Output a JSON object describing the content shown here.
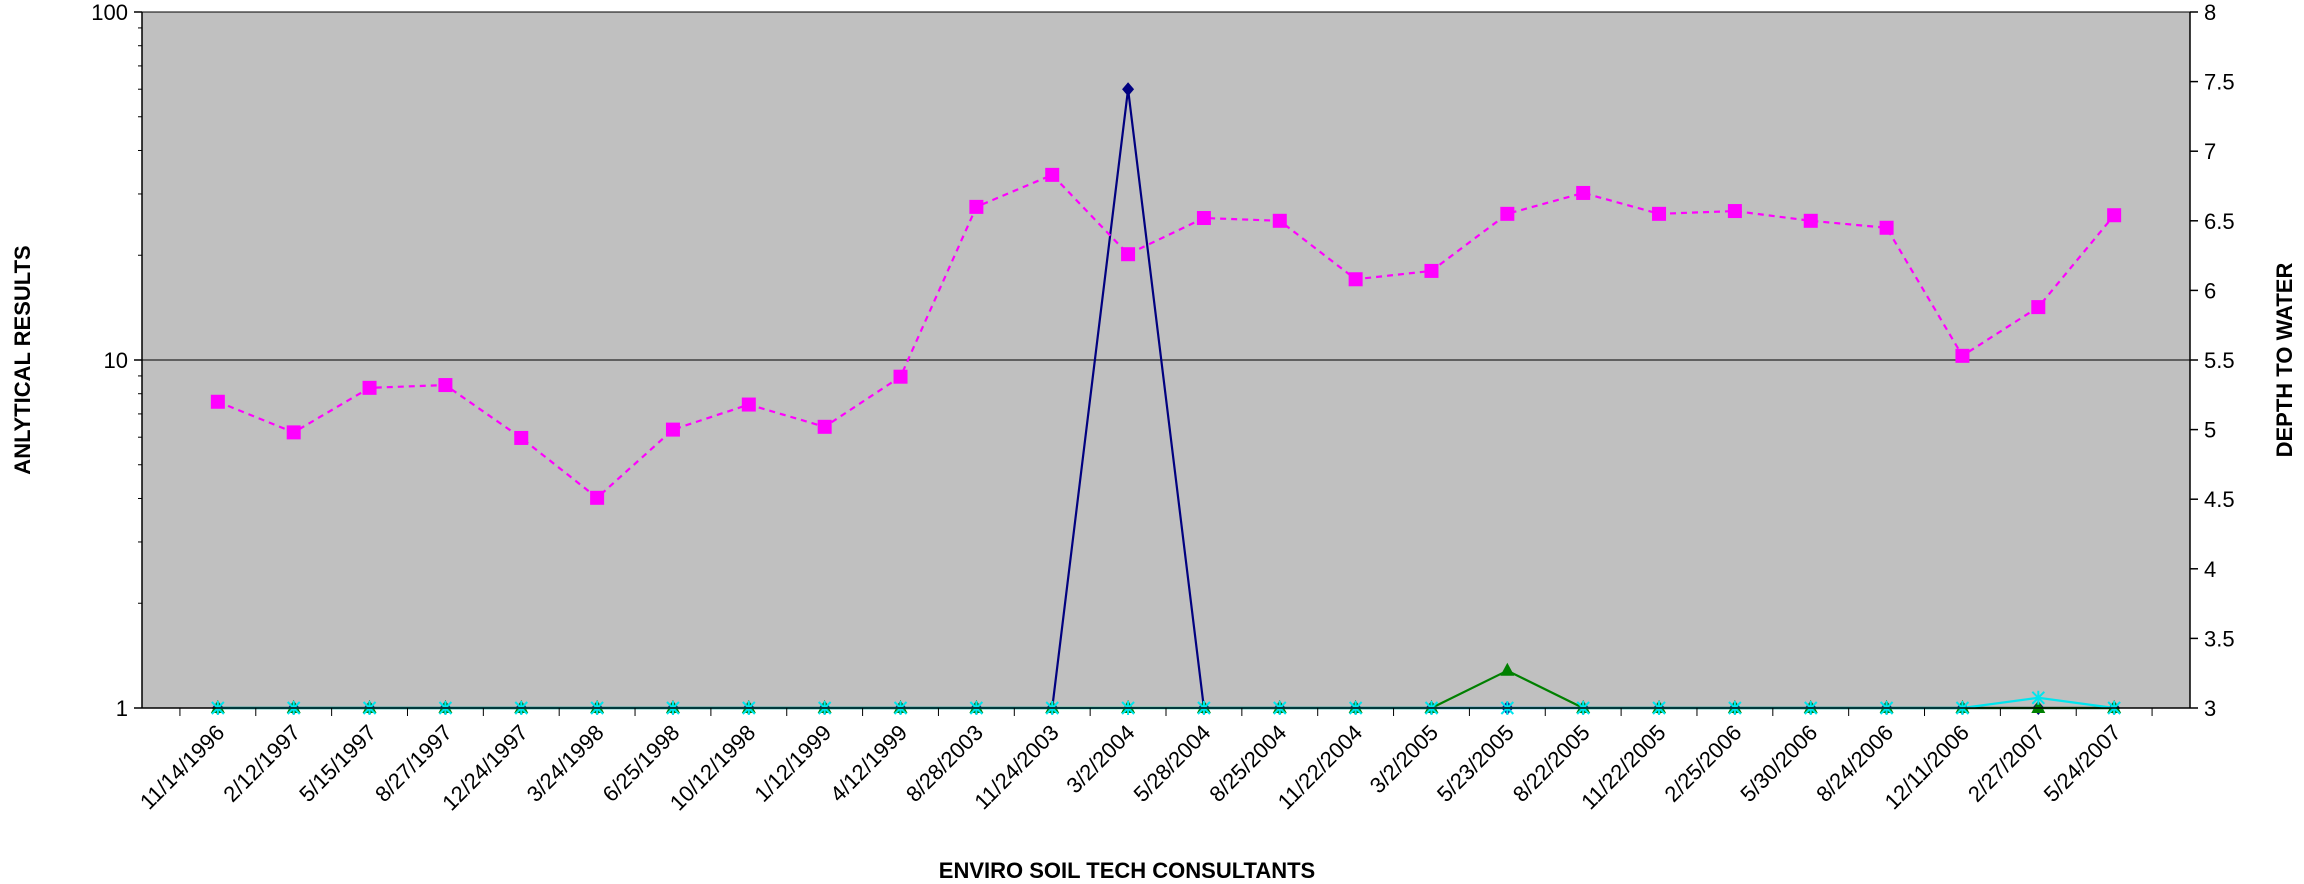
{
  "chart_data": {
    "type": "line",
    "title": "",
    "xlabel": "ENVIRO SOIL TECH CONSULTANTS",
    "ylabel": "ANLYTICAL RESULTS",
    "y2label": "DEPTH TO WATER",
    "y_scale": "log",
    "ylim": [
      1,
      100
    ],
    "y_ticks": [
      "1",
      "10",
      "100"
    ],
    "y2lim": [
      3,
      8
    ],
    "y2_ticks": [
      "3",
      "3.5",
      "4",
      "4.5",
      "5",
      "5.5",
      "6",
      "6.5",
      "7",
      "7.5",
      "8"
    ],
    "grid": "horizontal major gridlines on left axis",
    "background_color": "#c0c0c0",
    "categories": [
      "11/14/1996",
      "2/12/1997",
      "5/15/1997",
      "8/27/1997",
      "12/24/1997",
      "3/24/1998",
      "6/25/1998",
      "10/12/1998",
      "1/12/1999",
      "4/12/1999",
      "8/28/2003",
      "11/24/2003",
      "3/2/2004",
      "5/28/2004",
      "8/25/2004",
      "11/22/2004",
      "3/2/2005",
      "5/23/2005",
      "8/22/2005",
      "11/22/2005",
      "2/25/2006",
      "5/30/2006",
      "8/24/2006",
      "12/11/2006",
      "2/27/2007",
      "5/24/2007"
    ],
    "series": [
      {
        "axis": "right",
        "color": "#ff00ff",
        "style": "dashed",
        "marker": "square",
        "values": [
          5.2,
          4.98,
          5.3,
          5.32,
          4.94,
          4.51,
          5.0,
          5.18,
          5.02,
          5.38,
          6.6,
          6.83,
          6.26,
          6.52,
          6.5,
          6.08,
          6.14,
          6.55,
          6.7,
          6.55,
          6.57,
          6.5,
          6.45,
          5.53,
          5.88,
          6.54
        ]
      },
      {
        "axis": "left",
        "color": "#000080",
        "style": "solid",
        "marker": "diamond",
        "values": [
          1,
          1,
          1,
          1,
          1,
          1,
          1,
          1,
          1,
          1,
          1,
          1,
          60,
          1,
          1,
          1,
          1,
          1,
          1,
          1,
          1,
          1,
          1,
          1,
          1,
          1
        ]
      },
      {
        "axis": "left",
        "color": "#008000",
        "style": "solid",
        "marker": "triangle",
        "values": [
          1,
          1,
          1,
          1,
          1,
          1,
          1,
          1,
          1,
          1,
          1,
          1,
          1,
          1,
          1,
          1,
          1,
          1.28,
          1,
          1,
          1,
          1,
          1,
          1,
          1,
          1
        ]
      },
      {
        "axis": "left",
        "color": "#00e5ee",
        "style": "solid",
        "marker": "star",
        "values": [
          1,
          1,
          1,
          1,
          1,
          1,
          1,
          1,
          1,
          1,
          1,
          1,
          1,
          1,
          1,
          1,
          1,
          1,
          1,
          1,
          1,
          1,
          1,
          1,
          1.07,
          1
        ]
      }
    ]
  }
}
